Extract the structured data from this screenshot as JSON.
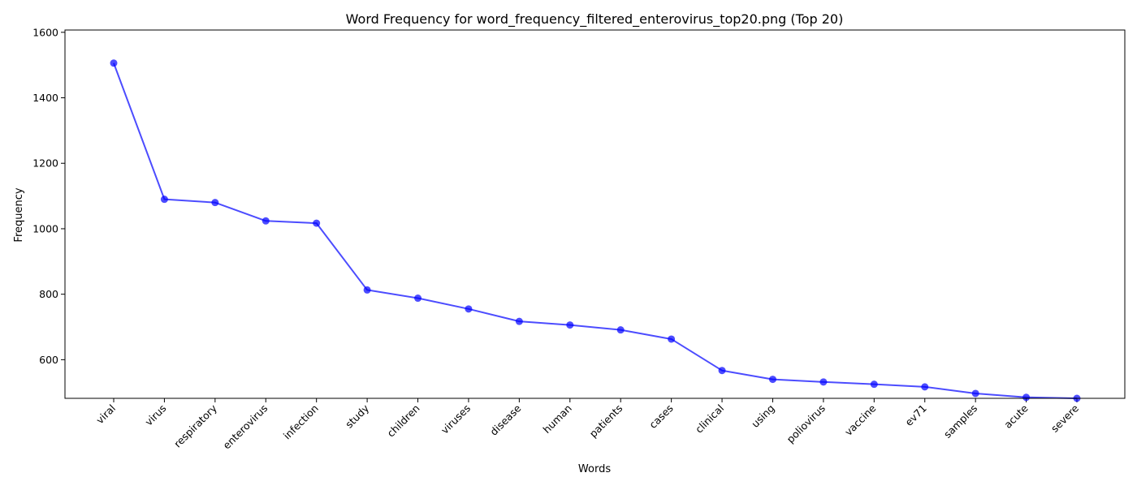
{
  "chart_data": {
    "type": "line",
    "title": "Word Frequency for word_frequency_filtered_enterovirus_top20.png (Top 20)",
    "xlabel": "Words",
    "ylabel": "Frequency",
    "categories": [
      "viral",
      "virus",
      "respiratory",
      "enterovirus",
      "infection",
      "study",
      "children",
      "viruses",
      "disease",
      "human",
      "patients",
      "cases",
      "clinical",
      "using",
      "poliovirus",
      "vaccine",
      "ev71",
      "samples",
      "acute",
      "severe"
    ],
    "values": [
      1506,
      1090,
      1080,
      1024,
      1017,
      813,
      788,
      755,
      717,
      706,
      691,
      663,
      567,
      540,
      532,
      525,
      517,
      497,
      485,
      482
    ],
    "ylim": [
      482,
      1607
    ],
    "yticks": [
      "600",
      "800",
      "1000",
      "1200",
      "1400",
      "1600"
    ],
    "grid": false,
    "line_color": "#0000ff",
    "line_opacity": 0.7,
    "marker": "circle"
  }
}
